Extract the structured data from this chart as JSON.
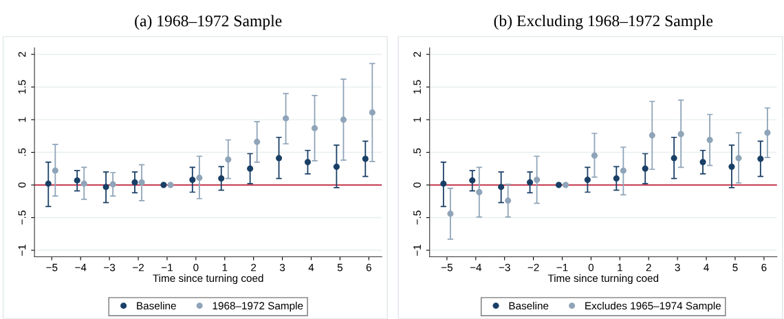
{
  "chart_data": [
    {
      "type": "scatter",
      "title": "(a) 1968–1972 Sample",
      "xlabel": "Time since turning coed",
      "xlim": [
        -5.6,
        6.45
      ],
      "ylim": [
        -1.1,
        2.1
      ],
      "xticks": [
        {
          "value": -5,
          "label": "−5"
        },
        {
          "value": -4,
          "label": "−4"
        },
        {
          "value": -3,
          "label": "−3"
        },
        {
          "value": -2,
          "label": "−2"
        },
        {
          "value": -1,
          "label": "−1"
        },
        0,
        1,
        2,
        3,
        4,
        5,
        6
      ],
      "yticks": [
        {
          "value": -1,
          "label": "−1"
        },
        {
          "value": -0.5,
          "label": "−.5"
        },
        0,
        {
          "value": 0.5,
          "label": ".5"
        },
        1,
        1.5,
        2
      ],
      "grid": "y",
      "legend": "bottom",
      "marker": "circle",
      "ref_lines": [
        {
          "axis": "y",
          "value": 0,
          "color": "#c0243c"
        }
      ],
      "series": [
        {
          "name": "Baseline",
          "color": "#1a3f66",
          "x": [
            -5.12,
            -4.12,
            -3.12,
            -2.12,
            -1.12,
            -0.12,
            0.88,
            1.88,
            2.88,
            3.88,
            4.88,
            5.88
          ],
          "values": [
            0.02,
            0.07,
            -0.03,
            0.04,
            0,
            0.08,
            0.1,
            0.25,
            0.41,
            0.35,
            0.28,
            0.4
          ],
          "errors": [
            [
              -0.33,
              0.35
            ],
            [
              -0.09,
              0.22
            ],
            [
              -0.27,
              0.2
            ],
            [
              -0.12,
              0.2
            ],
            null,
            [
              -0.11,
              0.27
            ],
            [
              -0.08,
              0.28
            ],
            [
              0.02,
              0.48
            ],
            [
              0.1,
              0.73
            ],
            [
              0.17,
              0.53
            ],
            [
              -0.04,
              0.61
            ],
            [
              0.13,
              0.67
            ]
          ]
        },
        {
          "name": "1968–1972 Sample",
          "color": "#8fa4b8",
          "x": [
            -4.88,
            -3.88,
            -2.88,
            -1.88,
            -0.88,
            0.12,
            1.12,
            2.12,
            3.12,
            4.12,
            5.12,
            6.12
          ],
          "values": [
            0.22,
            0.02,
            0.01,
            0.04,
            0,
            0.11,
            0.39,
            0.66,
            1.02,
            0.87,
            1.0,
            1.11
          ],
          "errors": [
            [
              -0.17,
              0.62
            ],
            [
              -0.22,
              0.27
            ],
            [
              -0.17,
              0.19
            ],
            [
              -0.24,
              0.31
            ],
            null,
            [
              -0.21,
              0.44
            ],
            [
              0.1,
              0.69
            ],
            [
              0.35,
              0.97
            ],
            [
              0.63,
              1.4
            ],
            [
              0.37,
              1.37
            ],
            [
              0.38,
              1.62
            ],
            [
              0.36,
              1.86
            ]
          ]
        }
      ]
    },
    {
      "type": "scatter",
      "title": "(b) Excluding 1968–1972 Sample",
      "xlabel": "Time since turning coed",
      "xlim": [
        -5.6,
        6.45
      ],
      "ylim": [
        -1.1,
        2.1
      ],
      "xticks": [
        {
          "value": -5,
          "label": "−5"
        },
        {
          "value": -4,
          "label": "−4"
        },
        {
          "value": -3,
          "label": "−3"
        },
        {
          "value": -2,
          "label": "−2"
        },
        {
          "value": -1,
          "label": "−1"
        },
        0,
        1,
        2,
        3,
        4,
        5,
        6
      ],
      "yticks": [
        {
          "value": -1,
          "label": "−1"
        },
        {
          "value": -0.5,
          "label": "−.5"
        },
        0,
        {
          "value": 0.5,
          "label": ".5"
        },
        1,
        1.5,
        2
      ],
      "grid": "y",
      "legend": "bottom",
      "marker": "circle",
      "ref_lines": [
        {
          "axis": "y",
          "value": 0,
          "color": "#c0243c"
        }
      ],
      "series": [
        {
          "name": "Baseline",
          "color": "#1a3f66",
          "x": [
            -5.12,
            -4.12,
            -3.12,
            -2.12,
            -1.12,
            -0.12,
            0.88,
            1.88,
            2.88,
            3.88,
            4.88,
            5.88
          ],
          "values": [
            0.02,
            0.07,
            -0.03,
            0.04,
            0,
            0.08,
            0.1,
            0.25,
            0.41,
            0.35,
            0.28,
            0.4
          ],
          "errors": [
            [
              -0.33,
              0.35
            ],
            [
              -0.09,
              0.22
            ],
            [
              -0.27,
              0.2
            ],
            [
              -0.12,
              0.2
            ],
            null,
            [
              -0.11,
              0.27
            ],
            [
              -0.08,
              0.28
            ],
            [
              0.02,
              0.48
            ],
            [
              0.1,
              0.73
            ],
            [
              0.17,
              0.53
            ],
            [
              -0.04,
              0.61
            ],
            [
              0.13,
              0.67
            ]
          ]
        },
        {
          "name": "Excludes 1965–1974 Sample",
          "color": "#8fa4b8",
          "x": [
            -4.88,
            -3.88,
            -2.88,
            -1.88,
            -0.88,
            0.12,
            1.12,
            2.12,
            3.12,
            4.12,
            5.12,
            6.12
          ],
          "values": [
            -0.44,
            -0.11,
            -0.24,
            0.08,
            0,
            0.45,
            0.22,
            0.76,
            0.78,
            0.69,
            0.41,
            0.8
          ],
          "errors": [
            [
              -0.83,
              -0.05
            ],
            [
              -0.49,
              0.27
            ],
            [
              -0.49,
              0.01
            ],
            [
              -0.28,
              0.44
            ],
            null,
            [
              0.12,
              0.79
            ],
            [
              -0.15,
              0.58
            ],
            [
              0.24,
              1.28
            ],
            [
              0.27,
              1.3
            ],
            [
              0.3,
              1.08
            ],
            [
              0.03,
              0.8
            ],
            [
              0.42,
              1.18
            ]
          ]
        }
      ]
    }
  ]
}
